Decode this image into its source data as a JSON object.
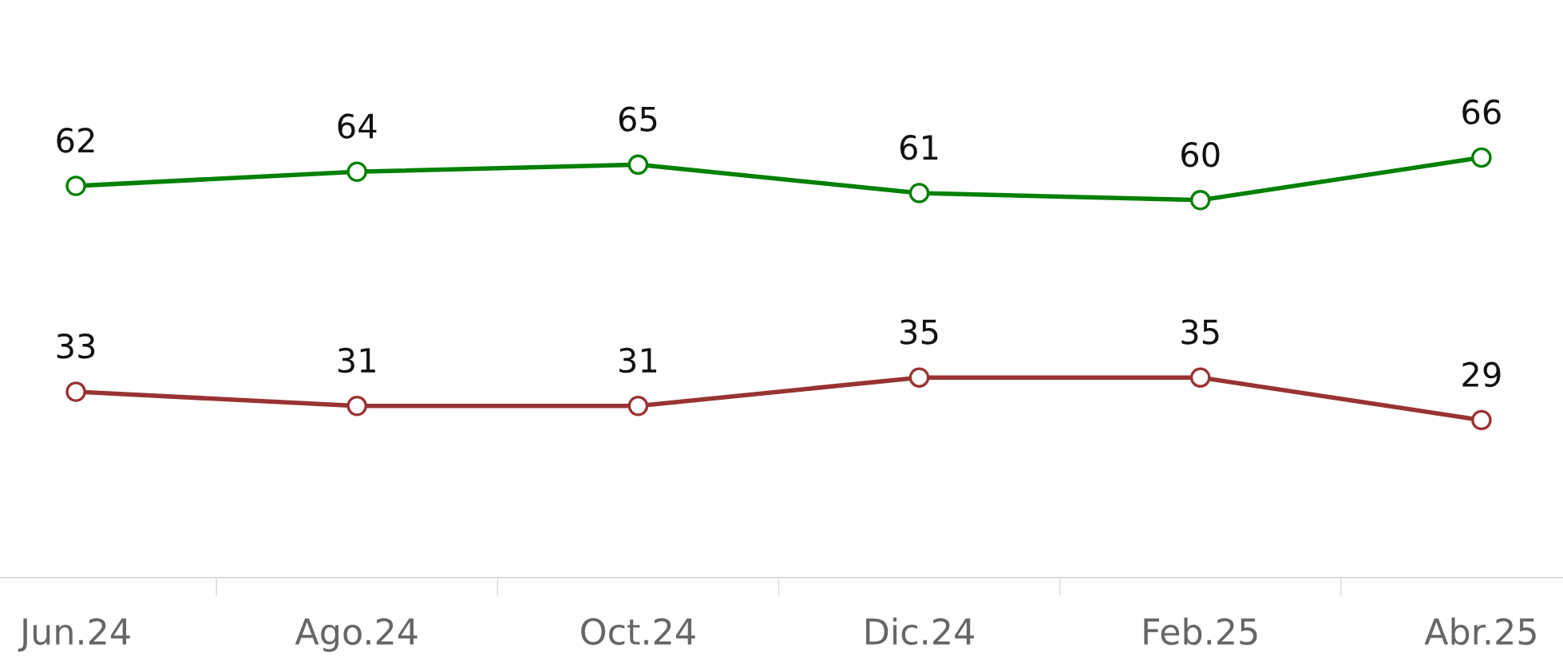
{
  "chart_data": {
    "type": "line",
    "categories": [
      "Jun.24",
      "Ago.24",
      "Oct.24",
      "Dic.24",
      "Feb.25",
      "Abr.25"
    ],
    "series": [
      {
        "color": "#008000",
        "values": [
          62,
          64,
          65,
          61,
          60,
          66
        ]
      },
      {
        "color": "#993333",
        "values": [
          33,
          31,
          31,
          35,
          35,
          29
        ]
      }
    ],
    "data_labels": true,
    "marker": "circle",
    "line_style": "solid",
    "grid": false,
    "legend": false,
    "tick_labels": "x"
  }
}
